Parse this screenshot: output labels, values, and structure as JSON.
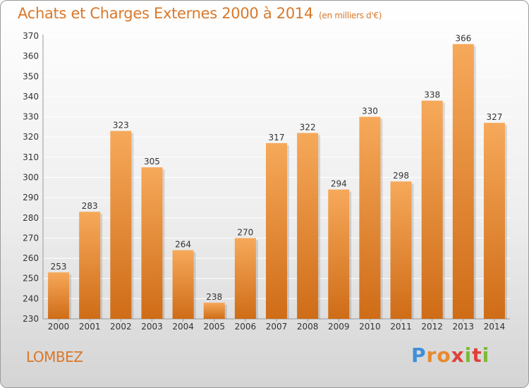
{
  "header": {
    "title": "Achats et Charges Externes 2000 à 2014",
    "unit": "(en milliers d'€)"
  },
  "footer": {
    "place": "LOMBEZ",
    "logo": "Proxiti"
  },
  "colors": {
    "title": "#d9782a",
    "bar_light": "#f6a95a",
    "bar_dark": "#cf6c17",
    "grid": "#ffffff"
  },
  "chart_data": {
    "type": "bar",
    "categories": [
      "2000",
      "2001",
      "2002",
      "2003",
      "2004",
      "2005",
      "2006",
      "2007",
      "2008",
      "2009",
      "2010",
      "2011",
      "2012",
      "2013",
      "2014"
    ],
    "values": [
      253,
      283,
      323,
      305,
      264,
      238,
      270,
      317,
      322,
      294,
      330,
      298,
      338,
      366,
      327
    ],
    "ylim": [
      230,
      370
    ],
    "yticks": [
      230,
      240,
      250,
      260,
      270,
      280,
      290,
      300,
      310,
      320,
      330,
      340,
      350,
      360,
      370
    ],
    "grid": true,
    "data_labels": true
  }
}
